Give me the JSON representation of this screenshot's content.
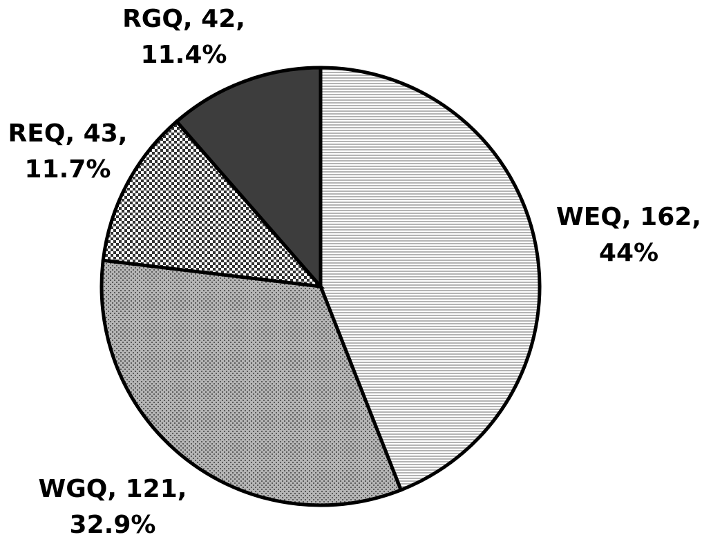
{
  "chart_data": {
    "type": "pie",
    "title": "",
    "start_angle": "12 o'clock",
    "direction": "clockwise",
    "legend": "none",
    "slices": [
      {
        "name": "WEQ",
        "value": 162,
        "percent": 44,
        "label_line1": "WEQ, 162,",
        "label_line2": "44%",
        "fill": "light horizontal lines",
        "color": "#d9d9d9"
      },
      {
        "name": "WGQ",
        "value": 121,
        "percent": 32.9,
        "label_line1": "WGQ, 121,",
        "label_line2": "32.9%",
        "fill": "gray dots",
        "color": "#a6a6a6"
      },
      {
        "name": "REQ",
        "value": 43,
        "percent": 11.7,
        "label_line1": "REQ, 43,",
        "label_line2": "11.7%",
        "fill": "checkerboard",
        "color": "#7f7f7f"
      },
      {
        "name": "RGQ",
        "value": 42,
        "percent": 11.4,
        "label_line1": "RGQ, 42,",
        "label_line2": "11.4%",
        "fill": "dark gray",
        "color": "#404040"
      }
    ],
    "outline_color": "#000000",
    "background": "#ffffff"
  }
}
